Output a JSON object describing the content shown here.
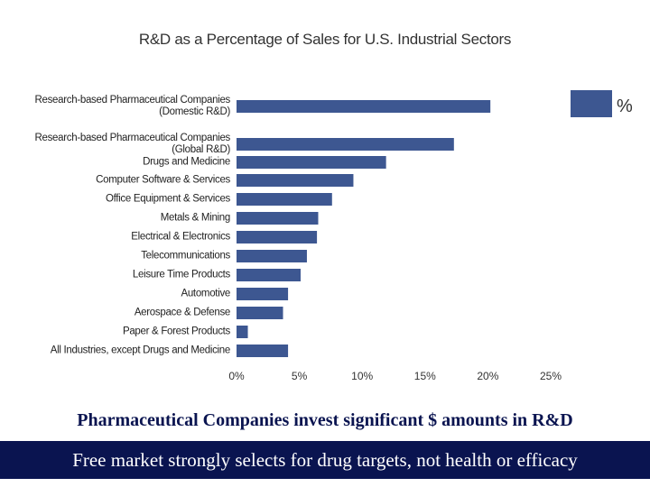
{
  "chart_data": {
    "type": "bar",
    "orientation": "horizontal",
    "title": "R&D as a Percentage of Sales for U.S. Industrial Sectors",
    "categories": [
      "Research-based Pharmaceutical Companies (Domestic R&D)",
      "Research-based Pharmaceutical Companies (Global R&D)",
      "Drugs and Medicine",
      "Computer Software & Services",
      "Office Equipment & Services",
      "Metals & Mining",
      "Electrical & Electronics",
      "Telecommunications",
      "Leisure Time Products",
      "Automotive",
      "Aerospace & Defense",
      "Paper & Forest Products",
      "All Industries, except Drugs and Medicine"
    ],
    "series": [
      {
        "name": "%",
        "color": "#3d5791",
        "values": [
          20.2,
          17.3,
          11.9,
          9.3,
          7.6,
          6.5,
          6.4,
          5.6,
          5.1,
          4.1,
          3.7,
          0.9,
          4.1
        ]
      }
    ],
    "xlim": [
      0,
      25
    ],
    "xticks": [
      {
        "value": 0,
        "label": "0%"
      },
      {
        "value": 5,
        "label": "5%"
      },
      {
        "value": 10,
        "label": "10%"
      },
      {
        "value": 15,
        "label": "15%"
      },
      {
        "value": 20,
        "label": "20%"
      },
      {
        "value": 25,
        "label": "25%"
      }
    ],
    "legend": "top-right",
    "annotations": [
      "Pharmaceutical Companies invest significant $ amounts in R&D",
      "Free market strongly selects for drug targets, not health or efficacy"
    ]
  }
}
